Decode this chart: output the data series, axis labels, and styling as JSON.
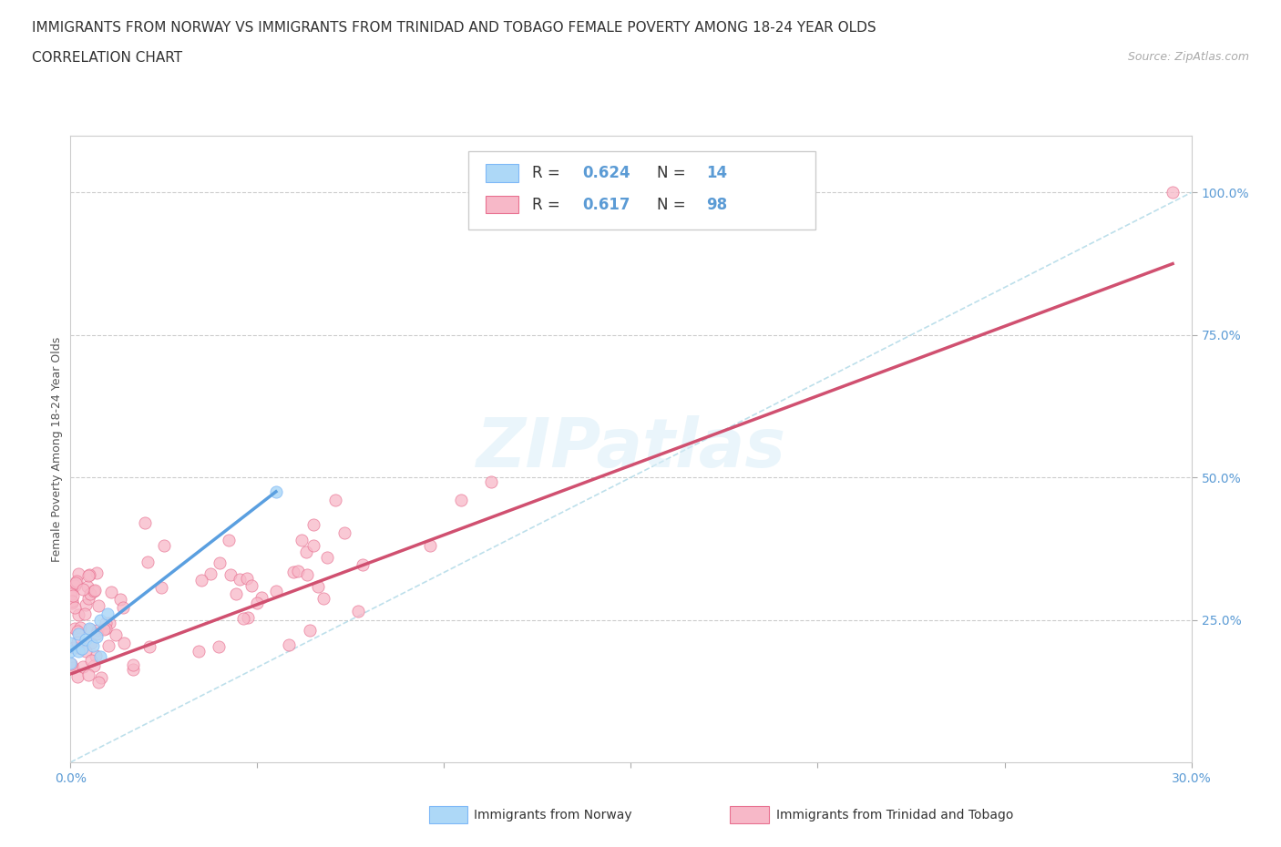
{
  "title_line1": "IMMIGRANTS FROM NORWAY VS IMMIGRANTS FROM TRINIDAD AND TOBAGO FEMALE POVERTY AMONG 18-24 YEAR OLDS",
  "title_line2": "CORRELATION CHART",
  "source_text": "Source: ZipAtlas.com",
  "ylabel": "Female Poverty Among 18-24 Year Olds",
  "xlim": [
    0.0,
    0.3
  ],
  "ylim": [
    0.0,
    1.1
  ],
  "ytick_labels": [
    "25.0%",
    "50.0%",
    "75.0%",
    "100.0%"
  ],
  "ytick_values": [
    0.25,
    0.5,
    0.75,
    1.0
  ],
  "watermark": "ZIPatlas",
  "norway_color": "#ADD8F7",
  "norway_color_dark": "#7EB8F7",
  "tt_color": "#F7B8C8",
  "tt_color_dark": "#E87090",
  "norway_line_x": [
    0.0,
    0.055
  ],
  "norway_line_y": [
    0.195,
    0.475
  ],
  "tt_line_x": [
    0.0,
    0.295
  ],
  "tt_line_y": [
    0.155,
    0.875
  ],
  "diag_color": "#ADD8E6",
  "title_fontsize": 11,
  "axis_label_fontsize": 9,
  "tick_fontsize": 10,
  "background_color": "#FFFFFF"
}
